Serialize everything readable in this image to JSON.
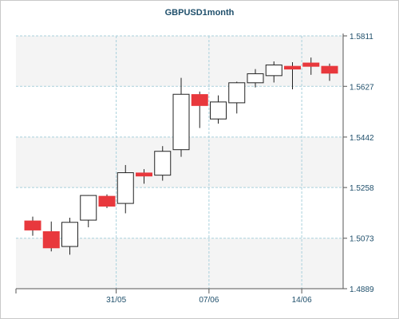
{
  "chart_data": {
    "type": "candlestick",
    "title": "GBPUSD1month",
    "xlabel": "",
    "ylabel": "",
    "ylim": [
      1.4889,
      1.5811
    ],
    "y_ticks": [
      "1.4889",
      "1.5073",
      "1.5258",
      "1.5442",
      "1.5627",
      "1.5811"
    ],
    "x_ticks": [
      {
        "label": "31/05",
        "index": 4.5
      },
      {
        "label": "07/06",
        "index": 9.5
      },
      {
        "label": "14/06",
        "index": 14.5
      }
    ],
    "grid": true,
    "colors": {
      "up_fill": "#ffffff",
      "down_fill": "#e8383d",
      "candle_stroke": "#222222",
      "grid": "#a9d0dc",
      "alt_band": "#f4f4f4",
      "axis": "#555555",
      "text": "#1f4f6b"
    },
    "candles": [
      {
        "open": 1.5136,
        "high": 1.5152,
        "low": 1.5082,
        "close": 1.5103
      },
      {
        "open": 1.5097,
        "high": 1.5134,
        "low": 1.5025,
        "close": 1.5038
      },
      {
        "open": 1.5043,
        "high": 1.5148,
        "low": 1.5013,
        "close": 1.5131
      },
      {
        "open": 1.5139,
        "high": 1.523,
        "low": 1.5113,
        "close": 1.5229
      },
      {
        "open": 1.5226,
        "high": 1.5233,
        "low": 1.5183,
        "close": 1.519
      },
      {
        "open": 1.52,
        "high": 1.534,
        "low": 1.5164,
        "close": 1.5312
      },
      {
        "open": 1.5311,
        "high": 1.5325,
        "low": 1.5272,
        "close": 1.53
      },
      {
        "open": 1.5303,
        "high": 1.5409,
        "low": 1.5283,
        "close": 1.539
      },
      {
        "open": 1.5396,
        "high": 1.5658,
        "low": 1.537,
        "close": 1.5598
      },
      {
        "open": 1.5597,
        "high": 1.5608,
        "low": 1.5475,
        "close": 1.5557
      },
      {
        "open": 1.5508,
        "high": 1.5594,
        "low": 1.5491,
        "close": 1.557
      },
      {
        "open": 1.5567,
        "high": 1.5644,
        "low": 1.5528,
        "close": 1.564
      },
      {
        "open": 1.564,
        "high": 1.569,
        "low": 1.5623,
        "close": 1.5673
      },
      {
        "open": 1.5666,
        "high": 1.5718,
        "low": 1.5641,
        "close": 1.5705
      },
      {
        "open": 1.57,
        "high": 1.5715,
        "low": 1.5616,
        "close": 1.569
      },
      {
        "open": 1.5712,
        "high": 1.5732,
        "low": 1.5669,
        "close": 1.57
      },
      {
        "open": 1.57,
        "high": 1.571,
        "low": 1.5647,
        "close": 1.5675
      }
    ]
  }
}
